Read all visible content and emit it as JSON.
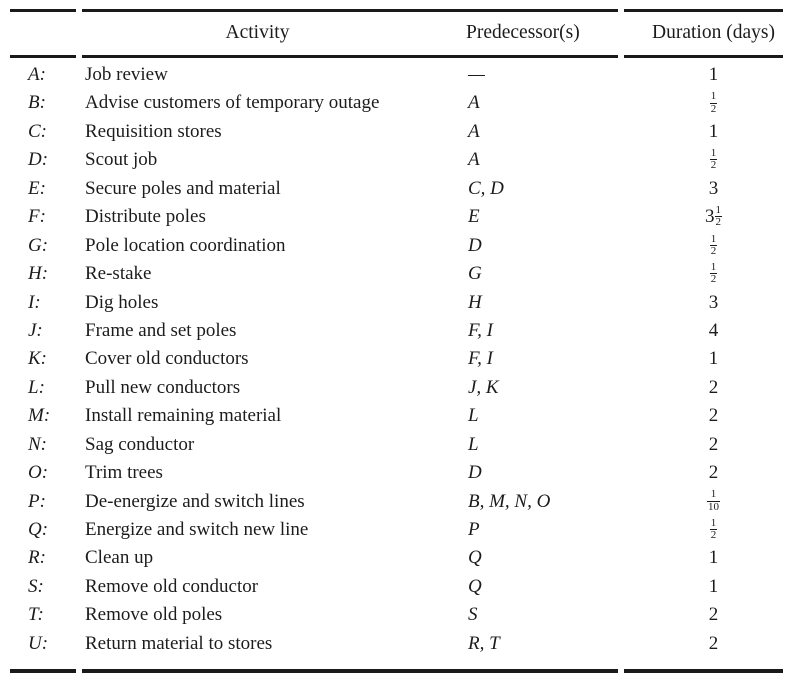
{
  "colors": {
    "text": "#1c1c1c",
    "rule": "#1a1a1a",
    "background": "#ffffff"
  },
  "table": {
    "headers": {
      "activity": "Activity",
      "predecessors": "Predecessor(s)",
      "duration": "Duration (days)"
    },
    "rows": [
      {
        "id": "A:",
        "activity": "Job review",
        "predecessors": "—",
        "duration": "1"
      },
      {
        "id": "B:",
        "activity": "Advise customers of temporary outage",
        "predecessors": "A",
        "duration": "1/2"
      },
      {
        "id": "C:",
        "activity": "Requisition stores",
        "predecessors": "A",
        "duration": "1"
      },
      {
        "id": "D:",
        "activity": "Scout job",
        "predecessors": "A",
        "duration": "1/2"
      },
      {
        "id": "E:",
        "activity": "Secure poles and material",
        "predecessors": "C, D",
        "duration": "3"
      },
      {
        "id": "F:",
        "activity": "Distribute poles",
        "predecessors": "E",
        "duration": "3 1/2"
      },
      {
        "id": "G:",
        "activity": "Pole location coordination",
        "predecessors": "D",
        "duration": "1/2"
      },
      {
        "id": "H:",
        "activity": "Re-stake",
        "predecessors": "G",
        "duration": "1/2"
      },
      {
        "id": "I:",
        "activity": "Dig holes",
        "predecessors": "H",
        "duration": "3"
      },
      {
        "id": "J:",
        "activity": "Frame and set poles",
        "predecessors": "F, I",
        "duration": "4"
      },
      {
        "id": "K:",
        "activity": "Cover old conductors",
        "predecessors": "F, I",
        "duration": "1"
      },
      {
        "id": "L:",
        "activity": "Pull new conductors",
        "predecessors": "J, K",
        "duration": "2"
      },
      {
        "id": "M:",
        "activity": "Install remaining material",
        "predecessors": "L",
        "duration": "2"
      },
      {
        "id": "N:",
        "activity": "Sag conductor",
        "predecessors": "L",
        "duration": "2"
      },
      {
        "id": "O:",
        "activity": "Trim trees",
        "predecessors": "D",
        "duration": "2"
      },
      {
        "id": "P:",
        "activity": "De-energize and switch lines",
        "predecessors": "B, M, N, O",
        "duration": "1/10"
      },
      {
        "id": "Q:",
        "activity": "Energize and switch new line",
        "predecessors": "P",
        "duration": "1/2"
      },
      {
        "id": "R:",
        "activity": "Clean up",
        "predecessors": "Q",
        "duration": "1"
      },
      {
        "id": "S:",
        "activity": "Remove old conductor",
        "predecessors": "Q",
        "duration": "1"
      },
      {
        "id": "T:",
        "activity": "Remove old poles",
        "predecessors": "S",
        "duration": "2"
      },
      {
        "id": "U:",
        "activity": "Return material to stores",
        "predecessors": "R, T",
        "duration": "2"
      }
    ]
  }
}
